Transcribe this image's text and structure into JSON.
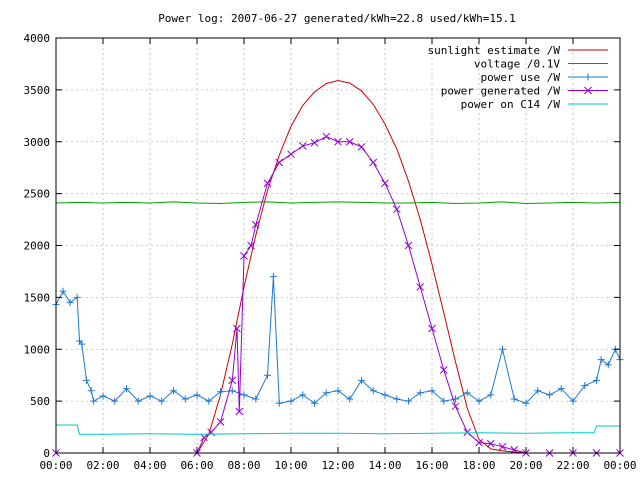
{
  "chart_data": {
    "type": "line",
    "title": "Power log: 2007-06-27 generated/kWh=22.8 used/kWh=15.1",
    "xlabel": "",
    "ylabel": "",
    "xlim": [
      0,
      24
    ],
    "ylim": [
      0,
      4000
    ],
    "grid": true,
    "legend_position": "top-right",
    "x_tick_labels": [
      "00:00",
      "02:00",
      "04:00",
      "06:00",
      "08:00",
      "10:00",
      "12:00",
      "14:00",
      "16:00",
      "18:00",
      "20:00",
      "22:00",
      "00:00"
    ],
    "y_ticks": [
      0,
      500,
      1000,
      1500,
      2000,
      2500,
      3000,
      3500,
      4000
    ],
    "series": [
      {
        "name": "sunlight estimate /W",
        "color": "#cc0000",
        "marker": "none",
        "x": [
          6.0,
          6.5,
          7.0,
          7.5,
          8.0,
          8.5,
          9.0,
          9.5,
          10.0,
          10.5,
          11.0,
          11.5,
          12.0,
          12.5,
          13.0,
          13.5,
          14.0,
          14.5,
          15.0,
          15.5,
          16.0,
          16.5,
          17.0,
          17.5,
          18.0,
          18.5,
          19.0,
          19.5,
          20.0
        ],
        "y": [
          0,
          180,
          560,
          1050,
          1600,
          2100,
          2530,
          2870,
          3150,
          3350,
          3480,
          3560,
          3590,
          3565,
          3490,
          3360,
          3170,
          2930,
          2620,
          2250,
          1820,
          1350,
          880,
          430,
          130,
          40,
          20,
          10,
          0
        ]
      },
      {
        "name": "voltage /0.1V",
        "color": "#00a000",
        "marker": "none",
        "x": [
          0,
          1,
          2,
          3,
          4,
          5,
          6,
          7,
          8,
          9,
          10,
          11,
          12,
          13,
          14,
          15,
          16,
          17,
          18,
          19,
          20,
          21,
          22,
          23,
          24
        ],
        "y": [
          2410,
          2415,
          2410,
          2415,
          2410,
          2420,
          2410,
          2405,
          2415,
          2420,
          2410,
          2415,
          2420,
          2415,
          2410,
          2410,
          2415,
          2405,
          2410,
          2420,
          2405,
          2410,
          2415,
          2410,
          2415
        ]
      },
      {
        "name": "power use /W",
        "color": "#1e78d2",
        "marker": "plus",
        "x": [
          0.0,
          0.3,
          0.6,
          0.9,
          1.0,
          1.1,
          1.3,
          1.5,
          1.6,
          2.0,
          2.5,
          3.0,
          3.5,
          4.0,
          4.5,
          5.0,
          5.5,
          6.0,
          6.5,
          7.0,
          7.5,
          8.0,
          8.5,
          9.0,
          9.25,
          9.5,
          10.0,
          10.5,
          11.0,
          11.5,
          12.0,
          12.5,
          13.0,
          13.5,
          14.0,
          14.5,
          15.0,
          15.5,
          16.0,
          16.5,
          17.0,
          17.5,
          18.0,
          18.5,
          19.0,
          19.5,
          20.0,
          20.5,
          21.0,
          21.5,
          22.0,
          22.5,
          23.0,
          23.2,
          23.5,
          23.8,
          24.0
        ],
        "y": [
          1430,
          1560,
          1450,
          1500,
          1080,
          1050,
          700,
          600,
          500,
          550,
          500,
          620,
          500,
          550,
          500,
          600,
          520,
          560,
          500,
          590,
          600,
          560,
          520,
          750,
          1700,
          480,
          500,
          560,
          480,
          580,
          600,
          520,
          700,
          600,
          560,
          520,
          500,
          580,
          600,
          500,
          520,
          580,
          500,
          560,
          1000,
          520,
          480,
          600,
          560,
          620,
          500,
          650,
          700,
          900,
          850,
          1000,
          900
        ]
      },
      {
        "name": "power generated /W",
        "color": "#9400d3",
        "marker": "cross",
        "x": [
          0,
          6.0,
          6.3,
          6.6,
          7.0,
          7.5,
          7.7,
          7.8,
          8.0,
          8.3,
          8.5,
          9.0,
          9.5,
          10.0,
          10.5,
          11.0,
          11.5,
          12.0,
          12.5,
          13.0,
          13.5,
          14.0,
          14.5,
          15.0,
          15.5,
          16.0,
          16.5,
          17.0,
          17.5,
          18.0,
          18.5,
          19.0,
          19.5,
          20.0,
          21.0,
          22.0,
          23.0,
          24.0
        ],
        "y": [
          0,
          0,
          150,
          200,
          300,
          700,
          1200,
          400,
          1900,
          2000,
          2200,
          2600,
          2800,
          2880,
          2960,
          2990,
          3050,
          3000,
          3000,
          2950,
          2800,
          2600,
          2350,
          2000,
          1600,
          1200,
          800,
          450,
          200,
          100,
          90,
          60,
          30,
          0,
          0,
          0,
          0,
          0
        ]
      },
      {
        "name": "power on C14 /W",
        "color": "#00c8c8",
        "marker": "none",
        "x": [
          0,
          0.9,
          1.0,
          2.0,
          4.0,
          6.0,
          8.0,
          10.0,
          12.0,
          14.0,
          16.0,
          18.0,
          20.0,
          22.0,
          22.9,
          23.0,
          24.0
        ],
        "y": [
          270,
          270,
          180,
          180,
          185,
          180,
          185,
          190,
          190,
          185,
          190,
          195,
          190,
          195,
          195,
          260,
          260
        ]
      }
    ]
  }
}
